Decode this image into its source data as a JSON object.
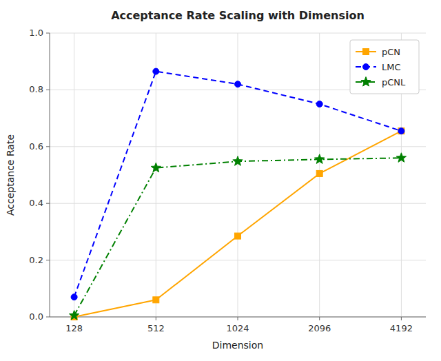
{
  "chart_data": {
    "type": "line",
    "title": "Acceptance Rate Scaling with Dimension",
    "x_label": "Dimension",
    "y_label": "Acceptance Rate",
    "categories": [
      "128",
      "512",
      "1024",
      "2096",
      "4192"
    ],
    "series": [
      {
        "name": "pCN",
        "color": "#FFA500",
        "marker": "square",
        "line_style": "solid",
        "values": [
          0.0,
          0.06,
          0.285,
          0.505,
          0.655
        ]
      },
      {
        "name": "LMC",
        "color": "#0000FF",
        "marker": "circle",
        "line_style": "dashed",
        "values": [
          0.07,
          0.865,
          0.82,
          0.75,
          0.655
        ]
      },
      {
        "name": "pCNL",
        "color": "#008000",
        "marker": "star",
        "line_style": "dashdot",
        "values": [
          0.005,
          0.525,
          0.548,
          0.555,
          0.56
        ]
      }
    ],
    "ylim": [
      0.0,
      1.0
    ],
    "yticks": [
      {
        "value": 0.0,
        "label": "0.0"
      },
      0.2,
      0.4,
      0.6,
      0.8,
      {
        "value": 1.0,
        "label": "1.0"
      }
    ],
    "grid": true,
    "legend": "upper right"
  }
}
